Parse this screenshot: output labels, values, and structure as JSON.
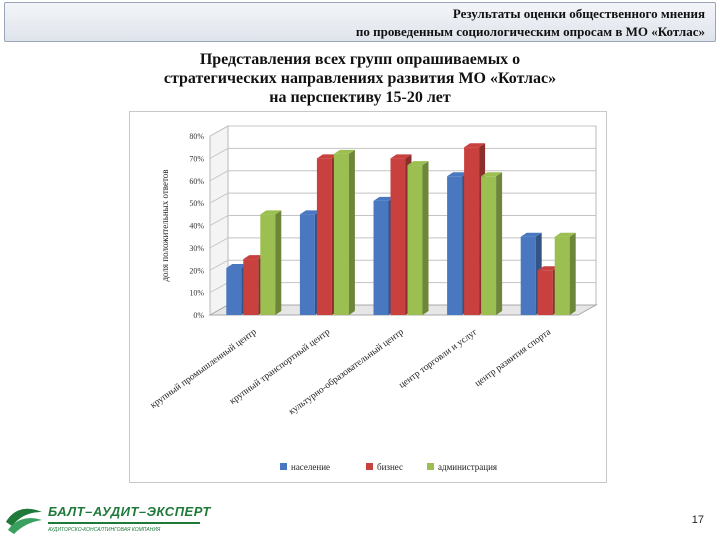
{
  "header": {
    "line1": "Результаты оценки общественного мнения",
    "line2": "по проведенным социологическим опросам  в МО «Котлас»"
  },
  "slide_title": {
    "line1": "Представления всех групп опрашиваемых о",
    "line2": "стратегических направлениях развития МО «Котлас»",
    "line3": "на перспективу 15-20 лет"
  },
  "chart_data": {
    "type": "bar",
    "ylabel": "доля положительных ответов",
    "ylim": [
      0,
      80
    ],
    "yticks": [
      "0%",
      "10%",
      "20%",
      "30%",
      "40%",
      "50%",
      "60%",
      "70%",
      "80%"
    ],
    "categories": [
      "крупный промышленный центр",
      "крупный транспортный центр",
      "культурно-образовательный центр",
      "центр торговли и услуг",
      "центр развития спорта"
    ],
    "series": [
      {
        "name": "население",
        "color": "#4a78c0",
        "values": [
          21,
          45,
          51,
          62,
          35
        ]
      },
      {
        "name": "бизнес",
        "color": "#c8413e",
        "values": [
          25,
          70,
          70,
          75,
          20
        ]
      },
      {
        "name": "администрация",
        "color": "#9bbf51",
        "values": [
          45,
          72,
          67,
          62,
          35
        ]
      }
    ],
    "legend_position": "bottom",
    "grid": true,
    "style": "3d-clustered"
  },
  "footer": {
    "logo_text": "БАЛТ–АУДИТ–ЭКСПЕРТ",
    "logo_subtitle": "АУДИТОРСКО-КОНСАЛТИНГОВАЯ КОМПАНИЯ",
    "page_number": "17"
  }
}
